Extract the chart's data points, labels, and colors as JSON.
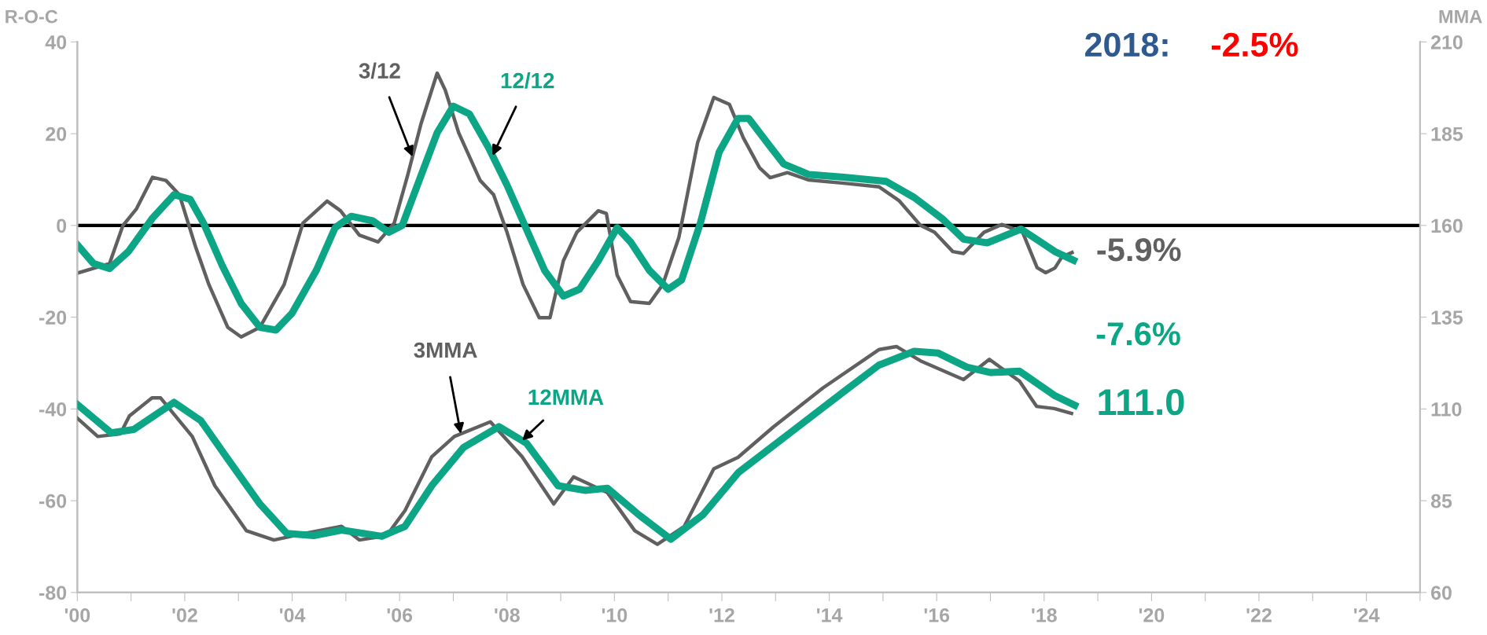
{
  "chart_data": {
    "type": "line",
    "ylabel": "R-O-C",
    "y2label": "MMA",
    "annotations": [
      "2018:",
      "-2.5%"
    ],
    "xlim": [
      2000,
      2025
    ],
    "xticks": [
      {
        "value": 2000,
        "label": "'00"
      },
      {
        "value": 2001,
        "label": null
      },
      {
        "value": 2002,
        "label": "'02"
      },
      {
        "value": 2003,
        "label": null
      },
      {
        "value": 2004,
        "label": "'04"
      },
      {
        "value": 2005,
        "label": null
      },
      {
        "value": 2006,
        "label": "'06"
      },
      {
        "value": 2007,
        "label": null
      },
      {
        "value": 2008,
        "label": "'08"
      },
      {
        "value": 2009,
        "label": null
      },
      {
        "value": 2010,
        "label": "'10"
      },
      {
        "value": 2011,
        "label": null
      },
      {
        "value": 2012,
        "label": "'12"
      },
      {
        "value": 2013,
        "label": null
      },
      {
        "value": 2014,
        "label": "'14"
      },
      {
        "value": 2015,
        "label": null
      },
      {
        "value": 2016,
        "label": "'16"
      },
      {
        "value": 2017,
        "label": null
      },
      {
        "value": 2018,
        "label": "'18"
      },
      {
        "value": 2019,
        "label": null
      },
      {
        "value": 2020,
        "label": "'20"
      },
      {
        "value": 2021,
        "label": null
      },
      {
        "value": 2022,
        "label": "'22"
      },
      {
        "value": 2023,
        "label": null
      },
      {
        "value": 2024,
        "label": "'24"
      },
      {
        "value": 2025,
        "label": null
      }
    ],
    "ylim": [
      -80,
      40
    ],
    "yticks": [
      -80,
      -60,
      -40,
      -20,
      0,
      20,
      40
    ],
    "y2lim": [
      60,
      210
    ],
    "y2ticks": [
      60,
      85,
      110,
      135,
      160,
      185,
      210
    ],
    "grid": false,
    "legend": false,
    "marker": "none",
    "line_style": "solid",
    "ref_lines": [
      {
        "axis": "y",
        "value": 0,
        "color": "#000000"
      }
    ],
    "series": [
      {
        "name": "3/12",
        "color": "#606060",
        "axis": "y",
        "x": [
          2000.0,
          2000.6,
          2000.85,
          2001.1,
          2001.4,
          2001.65,
          2001.9,
          2002.2,
          2002.45,
          2002.8,
          2003.05,
          2003.4,
          2003.85,
          2004.2,
          2004.65,
          2004.9,
          2005.25,
          2005.6,
          2005.9,
          2006.15,
          2006.4,
          2006.7,
          2006.85,
          2007.1,
          2007.5,
          2007.75,
          2008.0,
          2008.3,
          2008.6,
          2008.8,
          2009.05,
          2009.3,
          2009.7,
          2009.85,
          2010.05,
          2010.3,
          2010.65,
          2010.9,
          2011.2,
          2011.55,
          2011.85,
          2012.14,
          2012.4,
          2012.7,
          2012.9,
          2013.22,
          2013.62,
          2014.27,
          2014.93,
          2015.3,
          2015.7,
          2015.96,
          2016.3,
          2016.5,
          2016.88,
          2017.21,
          2017.6,
          2017.87,
          2018.03,
          2018.2,
          2018.33,
          2018.52
        ],
        "values": [
          -10.4,
          -8.3,
          0,
          3.6,
          10.5,
          9.8,
          6.7,
          -4.6,
          -12.9,
          -22.2,
          -24.3,
          -22.2,
          -12.9,
          0.5,
          5.3,
          3.2,
          -2.1,
          -3.6,
          0.5,
          10.9,
          22.2,
          33.2,
          29.5,
          20.2,
          9.8,
          6.7,
          -1.5,
          -12.9,
          -20.1,
          -20.1,
          -7.7,
          -1.5,
          3.2,
          2.6,
          -10.8,
          -16.6,
          -17.0,
          -12.9,
          -2.6,
          18.1,
          27.9,
          26.4,
          19.1,
          12.6,
          10.4,
          11.5,
          9.9,
          9.2,
          8.4,
          5.4,
          0,
          -1.5,
          -5.7,
          -6.1,
          -1.5,
          0.2,
          -1.5,
          -9.2,
          -10.3,
          -9.3,
          -6.9,
          -5.9
        ],
        "value_labels": [
          null,
          null,
          null,
          null,
          null,
          null,
          null,
          null,
          null,
          null,
          null,
          null,
          null,
          null,
          null,
          null,
          null,
          null,
          null,
          null,
          null,
          null,
          null,
          null,
          null,
          null,
          null,
          null,
          null,
          null,
          null,
          null,
          null,
          null,
          null,
          null,
          null,
          null,
          null,
          null,
          null,
          null,
          null,
          null,
          null,
          null,
          null,
          null,
          null,
          null,
          null,
          null,
          null,
          null,
          null,
          null,
          null,
          null,
          null,
          null,
          null,
          "-5.9%"
        ]
      },
      {
        "name": "12/12",
        "color": "#0ca585",
        "axis": "y",
        "x": [
          2000.0,
          2000.3,
          2000.6,
          2000.95,
          2001.4,
          2001.8,
          2002.1,
          2002.35,
          2002.7,
          2003.05,
          2003.4,
          2003.7,
          2004.0,
          2004.45,
          2004.8,
          2005.1,
          2005.5,
          2005.8,
          2006.05,
          2006.3,
          2006.7,
          2007.0,
          2007.3,
          2007.65,
          2008.0,
          2008.35,
          2008.7,
          2009.05,
          2009.35,
          2009.7,
          2010.05,
          2010.3,
          2010.65,
          2011.0,
          2011.25,
          2011.6,
          2011.95,
          2012.3,
          2012.5,
          2012.9,
          2013.15,
          2013.62,
          2014.27,
          2015.06,
          2015.58,
          2016.1,
          2016.5,
          2016.94,
          2017.57,
          2017.87,
          2018.2,
          2018.55
        ],
        "values": [
          -4.2,
          -8.3,
          -9.4,
          -5.7,
          1.6,
          6.7,
          5.7,
          0.5,
          -8.8,
          -17.0,
          -22.2,
          -22.8,
          -19.1,
          -9.8,
          -0.5,
          2.0,
          1.0,
          -1.5,
          0,
          7.8,
          20.2,
          26.0,
          24.3,
          17.1,
          8.8,
          -0.5,
          -9.8,
          -15.4,
          -13.9,
          -7.7,
          -0.5,
          -3.6,
          -9.8,
          -13.9,
          -11.9,
          0.5,
          16.0,
          23.3,
          23.3,
          17.2,
          13.4,
          11.1,
          10.5,
          9.6,
          6.1,
          1.5,
          -3.0,
          -3.8,
          -0.8,
          -3.1,
          -5.7,
          -7.6
        ],
        "value_labels": [
          null,
          null,
          null,
          null,
          null,
          null,
          null,
          null,
          null,
          null,
          null,
          null,
          null,
          null,
          null,
          null,
          null,
          null,
          null,
          null,
          null,
          null,
          null,
          null,
          null,
          null,
          null,
          null,
          null,
          null,
          null,
          null,
          null,
          null,
          null,
          null,
          null,
          null,
          null,
          null,
          null,
          null,
          null,
          null,
          null,
          null,
          null,
          null,
          null,
          null,
          null,
          "-7.6%"
        ]
      },
      {
        "name": "3MMA",
        "color": "#606060",
        "axis": "y2",
        "x": [
          2000.0,
          2000.38,
          2000.8,
          2000.97,
          2001.39,
          2001.55,
          2002.14,
          2002.56,
          2003.15,
          2003.66,
          2004.24,
          2004.92,
          2005.25,
          2005.76,
          2006.1,
          2006.6,
          2007.02,
          2007.69,
          2008.28,
          2008.87,
          2009.24,
          2009.87,
          2010.38,
          2010.8,
          2011.3,
          2011.85,
          2012.3,
          2012.96,
          2013.88,
          2014.93,
          2015.25,
          2015.7,
          2016.5,
          2016.98,
          2017.54,
          2017.86,
          2018.19,
          2018.51
        ],
        "values": [
          107.5,
          102.5,
          103.2,
          108.1,
          113.0,
          113.0,
          102.5,
          89.1,
          76.8,
          74.3,
          76.1,
          78.0,
          74.3,
          75.5,
          82.3,
          97.0,
          102.5,
          106.5,
          97.0,
          84.1,
          91.5,
          87.2,
          76.8,
          73.1,
          78.0,
          93.7,
          96.8,
          105.1,
          115.7,
          126.2,
          127.0,
          123.1,
          118.0,
          123.5,
          117.6,
          110.7,
          110.1,
          108.8
        ]
      },
      {
        "name": "12MMA",
        "color": "#0ca585",
        "axis": "y2",
        "x": [
          2000.0,
          2000.63,
          2001.05,
          2001.8,
          2002.3,
          2002.8,
          2003.4,
          2003.9,
          2004.4,
          2004.92,
          2005.67,
          2006.1,
          2006.6,
          2007.19,
          2007.85,
          2008.36,
          2008.95,
          2009.46,
          2009.87,
          2010.46,
          2011.05,
          2011.65,
          2012.31,
          2013.29,
          2014.27,
          2014.92,
          2015.58,
          2016.03,
          2016.56,
          2017.01,
          2017.54,
          2018.19,
          2018.57
        ],
        "values": [
          111.2,
          103.5,
          104.4,
          111.8,
          106.8,
          96.4,
          84.1,
          76.1,
          75.5,
          77.0,
          75.3,
          78.0,
          89.1,
          99.5,
          105.2,
          100.7,
          89.1,
          87.8,
          88.4,
          81.1,
          74.5,
          81.2,
          92.7,
          103.7,
          114.7,
          121.9,
          125.7,
          125.2,
          121.4,
          119.9,
          120.3,
          113.7,
          111.0
        ],
        "value_labels": [
          null,
          null,
          null,
          null,
          null,
          null,
          null,
          null,
          null,
          null,
          null,
          null,
          null,
          null,
          null,
          null,
          null,
          null,
          null,
          null,
          null,
          null,
          null,
          null,
          null,
          null,
          null,
          null,
          null,
          null,
          null,
          null,
          "111.0"
        ]
      }
    ]
  }
}
